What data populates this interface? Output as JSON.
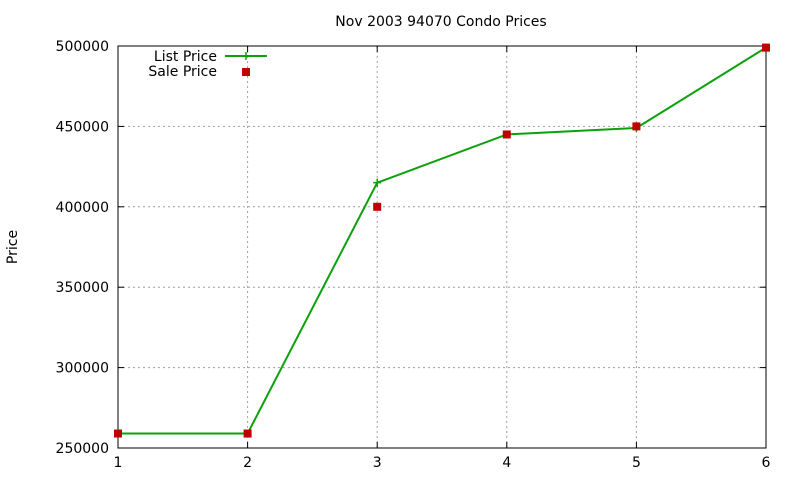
{
  "chart_data": {
    "type": "line",
    "title": "Nov 2003 94070 Condo Prices",
    "xlabel": "",
    "ylabel": "Price",
    "xlim": [
      1,
      6
    ],
    "ylim": [
      250000,
      500000
    ],
    "x_ticks": [
      "1",
      "2",
      "3",
      "4",
      "5",
      "6"
    ],
    "y_ticks": [
      "250000",
      "300000",
      "350000",
      "400000",
      "450000",
      "500000"
    ],
    "grid": true,
    "legend_position": "top-left",
    "series": [
      {
        "name": "List Price",
        "style": "line-cross",
        "color": "#0aa10a",
        "x": [
          1,
          2,
          3,
          4,
          5,
          6
        ],
        "y": [
          259000,
          259000,
          415000,
          445000,
          449000,
          499000
        ]
      },
      {
        "name": "Sale Price",
        "style": "square-points",
        "color": "#c00000",
        "x": [
          1,
          2,
          3,
          4,
          5,
          6
        ],
        "y": [
          259000,
          259000,
          400000,
          445000,
          450000,
          499000
        ]
      }
    ]
  }
}
